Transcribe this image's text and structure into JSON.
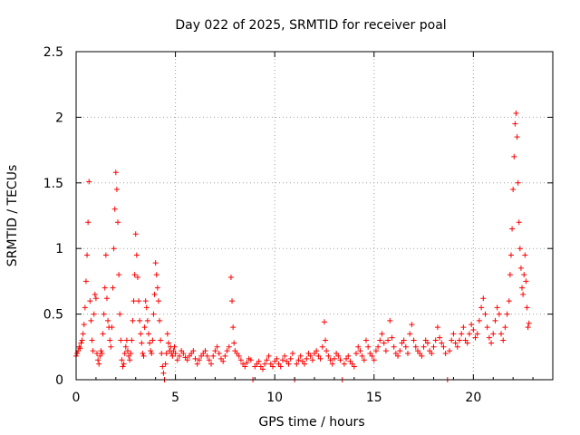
{
  "chart_data": {
    "type": "scatter",
    "title": "Day 022 of 2025, SRMTID for receiver poal",
    "xlabel": "GPS time / hours",
    "ylabel": "SRMTID / TECUs",
    "xlim": [
      0,
      24
    ],
    "ylim": [
      0,
      2.5
    ],
    "x_ticks": [
      0,
      5,
      10,
      15,
      20
    ],
    "x_tick_labels": [
      "0",
      "5",
      "10",
      "15",
      "20"
    ],
    "y_ticks": [
      0,
      0.5,
      1,
      1.5,
      2,
      2.5
    ],
    "y_tick_labels": [
      "0",
      "0.5",
      "1",
      "1.5",
      "2",
      "2.5"
    ],
    "grid": true,
    "marker": "+",
    "series": [
      {
        "name": "SRMTID",
        "color": "#ff0000",
        "x": [
          0.0,
          0.05,
          0.1,
          0.15,
          0.2,
          0.25,
          0.3,
          0.35,
          0.4,
          0.45,
          0.5,
          0.55,
          0.6,
          0.65,
          0.7,
          0.75,
          0.8,
          0.85,
          0.9,
          0.95,
          1.0,
          1.05,
          1.1,
          1.15,
          1.2,
          1.25,
          1.3,
          1.35,
          1.4,
          1.45,
          1.5,
          1.55,
          1.6,
          1.65,
          1.7,
          1.75,
          1.8,
          1.85,
          1.9,
          1.95,
          2.0,
          2.05,
          2.1,
          2.15,
          2.2,
          2.25,
          2.3,
          2.35,
          2.4,
          2.45,
          2.5,
          2.55,
          2.6,
          2.65,
          2.7,
          2.75,
          2.8,
          2.85,
          2.9,
          2.95,
          3.0,
          3.05,
          3.1,
          3.15,
          3.2,
          3.25,
          3.3,
          3.35,
          3.4,
          3.45,
          3.5,
          3.55,
          3.6,
          3.65,
          3.7,
          3.75,
          3.8,
          3.85,
          3.9,
          3.95,
          4.0,
          4.05,
          4.1,
          4.15,
          4.2,
          4.25,
          4.3,
          4.35,
          4.4,
          4.45,
          4.5,
          4.55,
          4.6,
          4.65,
          4.7,
          4.75,
          4.8,
          4.85,
          4.9,
          4.95,
          5.0,
          5.1,
          5.2,
          5.3,
          5.4,
          5.5,
          5.6,
          5.7,
          5.8,
          5.9,
          6.0,
          6.1,
          6.2,
          6.3,
          6.4,
          6.5,
          6.6,
          6.7,
          6.8,
          6.9,
          7.0,
          7.1,
          7.2,
          7.3,
          7.4,
          7.5,
          7.6,
          7.7,
          7.8,
          7.85,
          7.9,
          7.95,
          8.0,
          8.1,
          8.2,
          8.3,
          8.4,
          8.5,
          8.6,
          8.7,
          8.8,
          8.9,
          9.0,
          9.1,
          9.2,
          9.3,
          9.4,
          9.5,
          9.6,
          9.7,
          9.8,
          9.9,
          10.0,
          10.1,
          10.2,
          10.3,
          10.4,
          10.5,
          10.6,
          10.7,
          10.8,
          10.9,
          11.0,
          11.1,
          11.2,
          11.3,
          11.4,
          11.5,
          11.6,
          11.7,
          11.8,
          11.9,
          12.0,
          12.1,
          12.2,
          12.3,
          12.4,
          12.5,
          12.55,
          12.6,
          12.7,
          12.8,
          12.9,
          13.0,
          13.1,
          13.2,
          13.3,
          13.4,
          13.5,
          13.6,
          13.7,
          13.8,
          13.9,
          14.0,
          14.1,
          14.2,
          14.3,
          14.4,
          14.5,
          14.6,
          14.7,
          14.8,
          14.9,
          15.0,
          15.1,
          15.2,
          15.3,
          15.4,
          15.5,
          15.6,
          15.7,
          15.8,
          15.9,
          16.0,
          16.1,
          16.2,
          16.3,
          16.4,
          16.5,
          16.6,
          16.7,
          16.8,
          16.9,
          17.0,
          17.1,
          17.2,
          17.3,
          17.4,
          17.5,
          17.6,
          17.7,
          17.8,
          17.9,
          18.0,
          18.1,
          18.2,
          18.3,
          18.4,
          18.5,
          18.6,
          18.7,
          18.8,
          18.9,
          19.0,
          19.1,
          19.2,
          19.3,
          19.4,
          19.5,
          19.6,
          19.7,
          19.8,
          19.9,
          20.0,
          20.1,
          20.2,
          20.3,
          20.4,
          20.5,
          20.6,
          20.7,
          20.8,
          20.9,
          21.0,
          21.1,
          21.2,
          21.3,
          21.4,
          21.5,
          21.6,
          21.7,
          21.8,
          21.85,
          21.9,
          21.95,
          22.0,
          22.05,
          22.1,
          22.15,
          22.2,
          22.25,
          22.3,
          22.35,
          22.4,
          22.45,
          22.5,
          22.55,
          22.6,
          22.65,
          22.7,
          22.75,
          22.8
        ],
        "y": [
          0.18,
          0.2,
          0.22,
          0.25,
          0.24,
          0.28,
          0.3,
          0.35,
          0.42,
          0.55,
          0.75,
          0.95,
          1.2,
          1.51,
          0.6,
          0.45,
          0.3,
          0.22,
          0.5,
          0.65,
          0.62,
          0.2,
          0.15,
          0.12,
          0.18,
          0.22,
          0.2,
          0.35,
          0.5,
          0.7,
          0.95,
          0.62,
          0.45,
          0.4,
          0.3,
          0.25,
          0.4,
          0.7,
          1.0,
          1.3,
          1.58,
          1.45,
          1.2,
          0.8,
          0.5,
          0.3,
          0.15,
          0.1,
          0.12,
          0.2,
          0.25,
          0.3,
          0.22,
          0.18,
          0.15,
          0.2,
          0.3,
          0.45,
          0.6,
          0.8,
          1.11,
          0.95,
          0.78,
          0.6,
          0.45,
          0.35,
          0.28,
          0.2,
          0.18,
          0.4,
          0.6,
          0.55,
          0.45,
          0.35,
          0.28,
          0.22,
          0.2,
          0.3,
          0.5,
          0.65,
          0.89,
          0.8,
          0.7,
          0.6,
          0.45,
          0.3,
          0.2,
          0.1,
          0.05,
          0.0,
          0.12,
          0.2,
          0.35,
          0.28,
          0.22,
          0.25,
          0.2,
          0.18,
          0.22,
          0.25,
          0.2,
          0.15,
          0.18,
          0.22,
          0.2,
          0.17,
          0.15,
          0.18,
          0.2,
          0.22,
          0.16,
          0.12,
          0.15,
          0.18,
          0.2,
          0.22,
          0.18,
          0.15,
          0.12,
          0.18,
          0.22,
          0.25,
          0.2,
          0.16,
          0.14,
          0.18,
          0.22,
          0.25,
          0.78,
          0.6,
          0.4,
          0.28,
          0.22,
          0.2,
          0.18,
          0.15,
          0.12,
          0.1,
          0.13,
          0.16,
          0.15,
          0.0,
          0.1,
          0.12,
          0.14,
          0.1,
          0.08,
          0.12,
          0.15,
          0.18,
          0.12,
          0.1,
          0.14,
          0.16,
          0.12,
          0.1,
          0.15,
          0.18,
          0.14,
          0.12,
          0.16,
          0.2,
          0.0,
          0.12,
          0.15,
          0.18,
          0.14,
          0.12,
          0.16,
          0.2,
          0.18,
          0.15,
          0.2,
          0.22,
          0.18,
          0.16,
          0.25,
          0.44,
          0.3,
          0.22,
          0.18,
          0.15,
          0.12,
          0.16,
          0.2,
          0.18,
          0.15,
          0.0,
          0.12,
          0.16,
          0.18,
          0.14,
          0.12,
          0.1,
          0.2,
          0.25,
          0.22,
          0.18,
          0.15,
          0.3,
          0.25,
          0.2,
          0.18,
          0.15,
          0.22,
          0.25,
          0.3,
          0.35,
          0.28,
          0.22,
          0.3,
          0.45,
          0.32,
          0.25,
          0.2,
          0.18,
          0.22,
          0.28,
          0.3,
          0.25,
          0.2,
          0.35,
          0.42,
          0.3,
          0.25,
          0.22,
          0.2,
          0.18,
          0.25,
          0.3,
          0.28,
          0.22,
          0.2,
          0.25,
          0.3,
          0.4,
          0.32,
          0.28,
          0.25,
          0.2,
          0.0,
          0.22,
          0.3,
          0.35,
          0.28,
          0.25,
          0.3,
          0.35,
          0.4,
          0.3,
          0.28,
          0.35,
          0.42,
          0.38,
          0.32,
          0.35,
          0.45,
          0.55,
          0.62,
          0.5,
          0.4,
          0.32,
          0.28,
          0.35,
          0.45,
          0.55,
          0.5,
          0.35,
          0.3,
          0.4,
          0.5,
          0.6,
          0.8,
          0.95,
          1.15,
          1.45,
          1.7,
          1.95,
          2.03,
          1.85,
          1.5,
          1.2,
          1.0,
          0.85,
          0.7,
          0.65,
          0.8,
          0.95,
          0.75,
          0.55,
          0.4,
          0.43
        ]
      }
    ]
  }
}
